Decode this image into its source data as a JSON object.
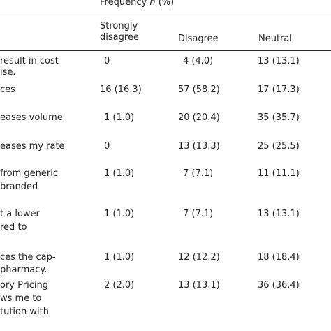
{
  "header": {
    "frequency_label": "Frequency",
    "frequency_n": "n",
    "frequency_pct": "(%)",
    "columns": [
      {
        "line1": "Strongly",
        "line2": "disagree"
      },
      {
        "line1": "Disagree",
        "line2": ""
      },
      {
        "line1": "Neutral",
        "line2": ""
      }
    ]
  },
  "rows": [
    {
      "label": [
        "result in cost",
        "ise."
      ],
      "values": [
        "0",
        "4 (4.0)",
        "13 (13.1)"
      ]
    },
    {
      "label": [
        "ces"
      ],
      "values": [
        "16 (16.3)",
        "57 (58.2)",
        "17 (17.3)"
      ]
    },
    {
      "label": [
        "eases volume"
      ],
      "values": [
        "1 (1.0)",
        "20 (20.4)",
        "35 (35.7)"
      ]
    },
    {
      "label": [
        "eases my rate"
      ],
      "values": [
        "0",
        "13 (13.3)",
        "25 (25.5)"
      ]
    },
    {
      "label": [
        "from generic",
        "branded"
      ],
      "values": [
        "1 (1.0)",
        "7 (7.1)",
        "11 (11.1)"
      ]
    },
    {
      "label": [
        "t a lower",
        "red to"
      ],
      "values": [
        "1 (1.0)",
        "7 (7.1)",
        "13 (13.1)"
      ]
    },
    {
      "label": [
        "ces the cap-",
        "pharmacy."
      ],
      "values": [
        "1 (1.0)",
        "12 (12.2)",
        "18 (18.4)"
      ]
    },
    {
      "label": [
        "ory Pricing",
        "ws me to",
        "tution with"
      ],
      "values": [
        "2 (2.0)",
        "13 (13.1)",
        "36 (36.4)"
      ]
    }
  ]
}
